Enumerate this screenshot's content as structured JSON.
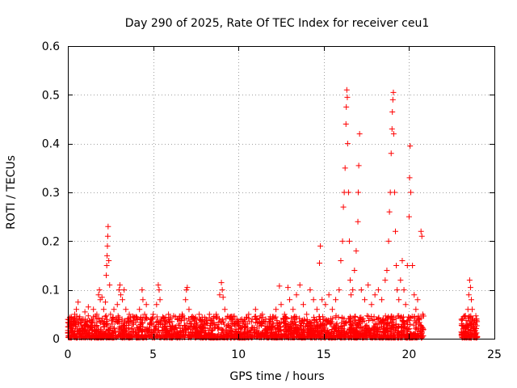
{
  "chart_data": {
    "type": "scatter",
    "title": "Day 290 of 2025, Rate Of TEC Index for receiver ceu1",
    "xlabel": "GPS time / hours",
    "ylabel": "ROTI / TECUs",
    "xlim": [
      0,
      25
    ],
    "ylim": [
      0,
      0.6
    ],
    "xticks": [
      0,
      5,
      10,
      15,
      20,
      25
    ],
    "yticks": [
      0,
      0.1,
      0.2,
      0.3,
      0.4,
      0.5,
      0.6
    ],
    "ytick_labels": [
      "0",
      "0.1",
      "0.2",
      "0.3",
      "0.4",
      "0.5",
      "0.6"
    ],
    "grid": true,
    "marker": "plus",
    "color": "#ff0000",
    "series": [
      {
        "points": [
          [
            0.05,
            0.012
          ],
          [
            0.1,
            0.03
          ],
          [
            0.15,
            0.02
          ],
          [
            0.2,
            0.045
          ],
          [
            0.25,
            0.015
          ],
          [
            0.3,
            0.035
          ],
          [
            0.35,
            0.01
          ],
          [
            0.4,
            0.05
          ],
          [
            0.45,
            0.025
          ],
          [
            0.5,
            0.06
          ],
          [
            0.55,
            0.02
          ],
          [
            0.6,
            0.075
          ],
          [
            0.65,
            0.03
          ],
          [
            0.7,
            0.045
          ],
          [
            0.8,
            0.02
          ],
          [
            0.9,
            0.04
          ],
          [
            1.0,
            0.055
          ],
          [
            1.1,
            0.03
          ],
          [
            1.2,
            0.065
          ],
          [
            1.3,
            0.02
          ],
          [
            1.4,
            0.04
          ],
          [
            1.5,
            0.06
          ],
          [
            1.6,
            0.025
          ],
          [
            1.7,
            0.05
          ],
          [
            1.8,
            0.09
          ],
          [
            1.85,
            0.1
          ],
          [
            1.9,
            0.08
          ],
          [
            2.0,
            0.085
          ],
          [
            2.1,
            0.06
          ],
          [
            2.2,
            0.075
          ],
          [
            2.25,
            0.13
          ],
          [
            2.28,
            0.15
          ],
          [
            2.3,
            0.17
          ],
          [
            2.32,
            0.19
          ],
          [
            2.34,
            0.21
          ],
          [
            2.36,
            0.23
          ],
          [
            2.4,
            0.16
          ],
          [
            2.45,
            0.11
          ],
          [
            2.5,
            0.05
          ],
          [
            2.6,
            0.03
          ],
          [
            2.7,
            0.06
          ],
          [
            2.8,
            0.04
          ],
          [
            2.9,
            0.07
          ],
          [
            3.0,
            0.1
          ],
          [
            3.05,
            0.11
          ],
          [
            3.1,
            0.09
          ],
          [
            3.2,
            0.08
          ],
          [
            3.3,
            0.1
          ],
          [
            3.4,
            0.06
          ],
          [
            3.5,
            0.04
          ],
          [
            3.6,
            0.05
          ],
          [
            3.8,
            0.03
          ],
          [
            4.0,
            0.045
          ],
          [
            4.2,
            0.06
          ],
          [
            4.35,
            0.1
          ],
          [
            4.4,
            0.08
          ],
          [
            4.5,
            0.05
          ],
          [
            4.6,
            0.07
          ],
          [
            4.8,
            0.03
          ],
          [
            5.0,
            0.05
          ],
          [
            5.2,
            0.07
          ],
          [
            5.3,
            0.11
          ],
          [
            5.35,
            0.1
          ],
          [
            5.4,
            0.08
          ],
          [
            5.5,
            0.04
          ],
          [
            5.7,
            0.03
          ],
          [
            5.9,
            0.05
          ],
          [
            6.1,
            0.035
          ],
          [
            6.3,
            0.045
          ],
          [
            6.5,
            0.03
          ],
          [
            6.7,
            0.05
          ],
          [
            6.9,
            0.08
          ],
          [
            6.95,
            0.1
          ],
          [
            7.0,
            0.105
          ],
          [
            7.1,
            0.06
          ],
          [
            7.3,
            0.04
          ],
          [
            7.5,
            0.03
          ],
          [
            7.7,
            0.05
          ],
          [
            7.9,
            0.03
          ],
          [
            8.1,
            0.04
          ],
          [
            8.3,
            0.05
          ],
          [
            8.5,
            0.03
          ],
          [
            8.7,
            0.05
          ],
          [
            8.9,
            0.09
          ],
          [
            9.0,
            0.115
          ],
          [
            9.05,
            0.1
          ],
          [
            9.1,
            0.085
          ],
          [
            9.2,
            0.06
          ],
          [
            9.4,
            0.03
          ],
          [
            9.6,
            0.04
          ],
          [
            9.8,
            0.03
          ],
          [
            10.0,
            0.025
          ],
          [
            10.2,
            0.04
          ],
          [
            10.4,
            0.03
          ],
          [
            10.6,
            0.05
          ],
          [
            10.8,
            0.04
          ],
          [
            11.0,
            0.06
          ],
          [
            11.2,
            0.035
          ],
          [
            11.4,
            0.05
          ],
          [
            11.6,
            0.04
          ],
          [
            11.8,
            0.03
          ],
          [
            12.0,
            0.045
          ],
          [
            12.2,
            0.06
          ],
          [
            12.4,
            0.108
          ],
          [
            12.5,
            0.07
          ],
          [
            12.7,
            0.05
          ],
          [
            12.9,
            0.105
          ],
          [
            13.0,
            0.08
          ],
          [
            13.2,
            0.06
          ],
          [
            13.4,
            0.09
          ],
          [
            13.6,
            0.11
          ],
          [
            13.8,
            0.07
          ],
          [
            14.0,
            0.05
          ],
          [
            14.2,
            0.1
          ],
          [
            14.4,
            0.08
          ],
          [
            14.6,
            0.06
          ],
          [
            14.75,
            0.155
          ],
          [
            14.8,
            0.19
          ],
          [
            14.9,
            0.08
          ],
          [
            15.1,
            0.07
          ],
          [
            15.3,
            0.09
          ],
          [
            15.5,
            0.06
          ],
          [
            15.7,
            0.08
          ],
          [
            15.9,
            0.1
          ],
          [
            16.0,
            0.16
          ],
          [
            16.1,
            0.2
          ],
          [
            16.15,
            0.27
          ],
          [
            16.2,
            0.3
          ],
          [
            16.25,
            0.35
          ],
          [
            16.3,
            0.44
          ],
          [
            16.32,
            0.475
          ],
          [
            16.35,
            0.51
          ],
          [
            16.38,
            0.495
          ],
          [
            16.4,
            0.4
          ],
          [
            16.45,
            0.3
          ],
          [
            16.5,
            0.2
          ],
          [
            16.55,
            0.12
          ],
          [
            16.6,
            0.09
          ],
          [
            16.7,
            0.1
          ],
          [
            16.8,
            0.14
          ],
          [
            16.9,
            0.18
          ],
          [
            17.0,
            0.24
          ],
          [
            17.02,
            0.3
          ],
          [
            17.05,
            0.355
          ],
          [
            17.1,
            0.42
          ],
          [
            17.2,
            0.1
          ],
          [
            17.4,
            0.08
          ],
          [
            17.6,
            0.11
          ],
          [
            17.8,
            0.07
          ],
          [
            18.0,
            0.09
          ],
          [
            18.2,
            0.1
          ],
          [
            18.4,
            0.08
          ],
          [
            18.6,
            0.12
          ],
          [
            18.7,
            0.14
          ],
          [
            18.8,
            0.2
          ],
          [
            18.85,
            0.26
          ],
          [
            18.9,
            0.3
          ],
          [
            18.95,
            0.38
          ],
          [
            19.0,
            0.43
          ],
          [
            19.02,
            0.465
          ],
          [
            19.05,
            0.49
          ],
          [
            19.08,
            0.505
          ],
          [
            19.1,
            0.42
          ],
          [
            19.15,
            0.3
          ],
          [
            19.2,
            0.22
          ],
          [
            19.25,
            0.15
          ],
          [
            19.3,
            0.1
          ],
          [
            19.4,
            0.08
          ],
          [
            19.5,
            0.12
          ],
          [
            19.6,
            0.16
          ],
          [
            19.7,
            0.1
          ],
          [
            19.8,
            0.07
          ],
          [
            19.9,
            0.15
          ],
          [
            20.0,
            0.25
          ],
          [
            20.03,
            0.33
          ],
          [
            20.06,
            0.395
          ],
          [
            20.1,
            0.3
          ],
          [
            20.2,
            0.15
          ],
          [
            20.3,
            0.09
          ],
          [
            20.4,
            0.06
          ],
          [
            20.5,
            0.08
          ],
          [
            20.6,
            0.04
          ],
          [
            20.7,
            0.22
          ],
          [
            20.75,
            0.21
          ],
          [
            20.8,
            0.05
          ],
          [
            23.1,
            0.012
          ],
          [
            23.2,
            0.02
          ],
          [
            23.3,
            0.015
          ],
          [
            23.4,
            0.03
          ],
          [
            23.45,
            0.06
          ],
          [
            23.5,
            0.09
          ],
          [
            23.55,
            0.12
          ],
          [
            23.6,
            0.105
          ],
          [
            23.65,
            0.08
          ],
          [
            23.7,
            0.06
          ],
          [
            23.75,
            0.04
          ],
          [
            23.8,
            0.02
          ],
          [
            23.9,
            0.01
          ]
        ]
      }
    ]
  }
}
